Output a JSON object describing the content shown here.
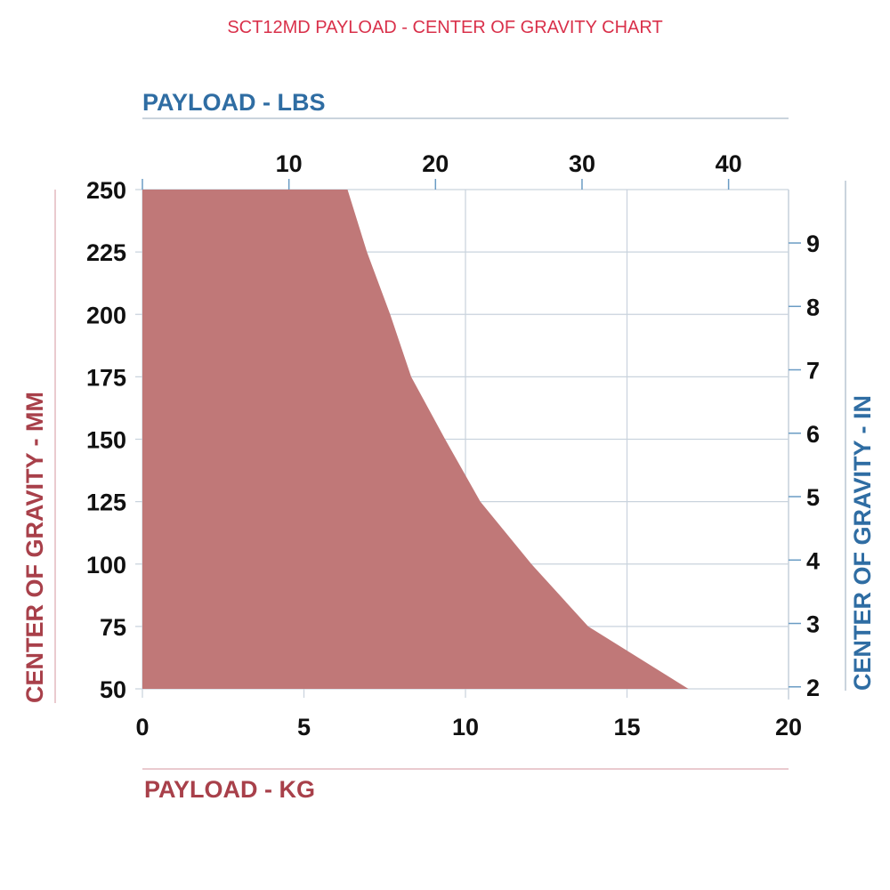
{
  "chart_data": {
    "type": "area",
    "title": "SCT12MD PAYLOAD - CENTER OF GRAVITY CHART",
    "xlabel": "PAYLOAD - KG",
    "ylabel": "CENTER OF GRAVITY - MM",
    "x2label": "PAYLOAD - LBS",
    "y2label": "CENTER OF GRAVITY - IN",
    "xlim": [
      0,
      20
    ],
    "ylim": [
      50,
      250
    ],
    "x_ticks": [
      0,
      5,
      10,
      15,
      20
    ],
    "y_ticks": [
      50,
      75,
      100,
      125,
      150,
      175,
      200,
      225,
      250
    ],
    "x2_ticks": [
      10,
      20,
      30,
      40
    ],
    "y2_ticks": [
      2,
      3,
      4,
      5,
      6,
      7,
      8,
      9
    ],
    "grid": true,
    "series": [
      {
        "x": [
          0,
          6.35,
          6.95,
          7.67,
          8.32,
          9.37,
          10.46,
          12.04,
          13.8,
          16.9,
          0
        ],
        "y": [
          250,
          250,
          225,
          200,
          175,
          150,
          125,
          100,
          75,
          50,
          50
        ]
      }
    ],
    "colors": {
      "fill": "#c07878",
      "title": "#d9304a",
      "kg_mm": "#a8404a",
      "lbs_in": "#2f6da3",
      "grid": "#c9d3dd",
      "tick_mark": "#6a9cc4"
    }
  }
}
